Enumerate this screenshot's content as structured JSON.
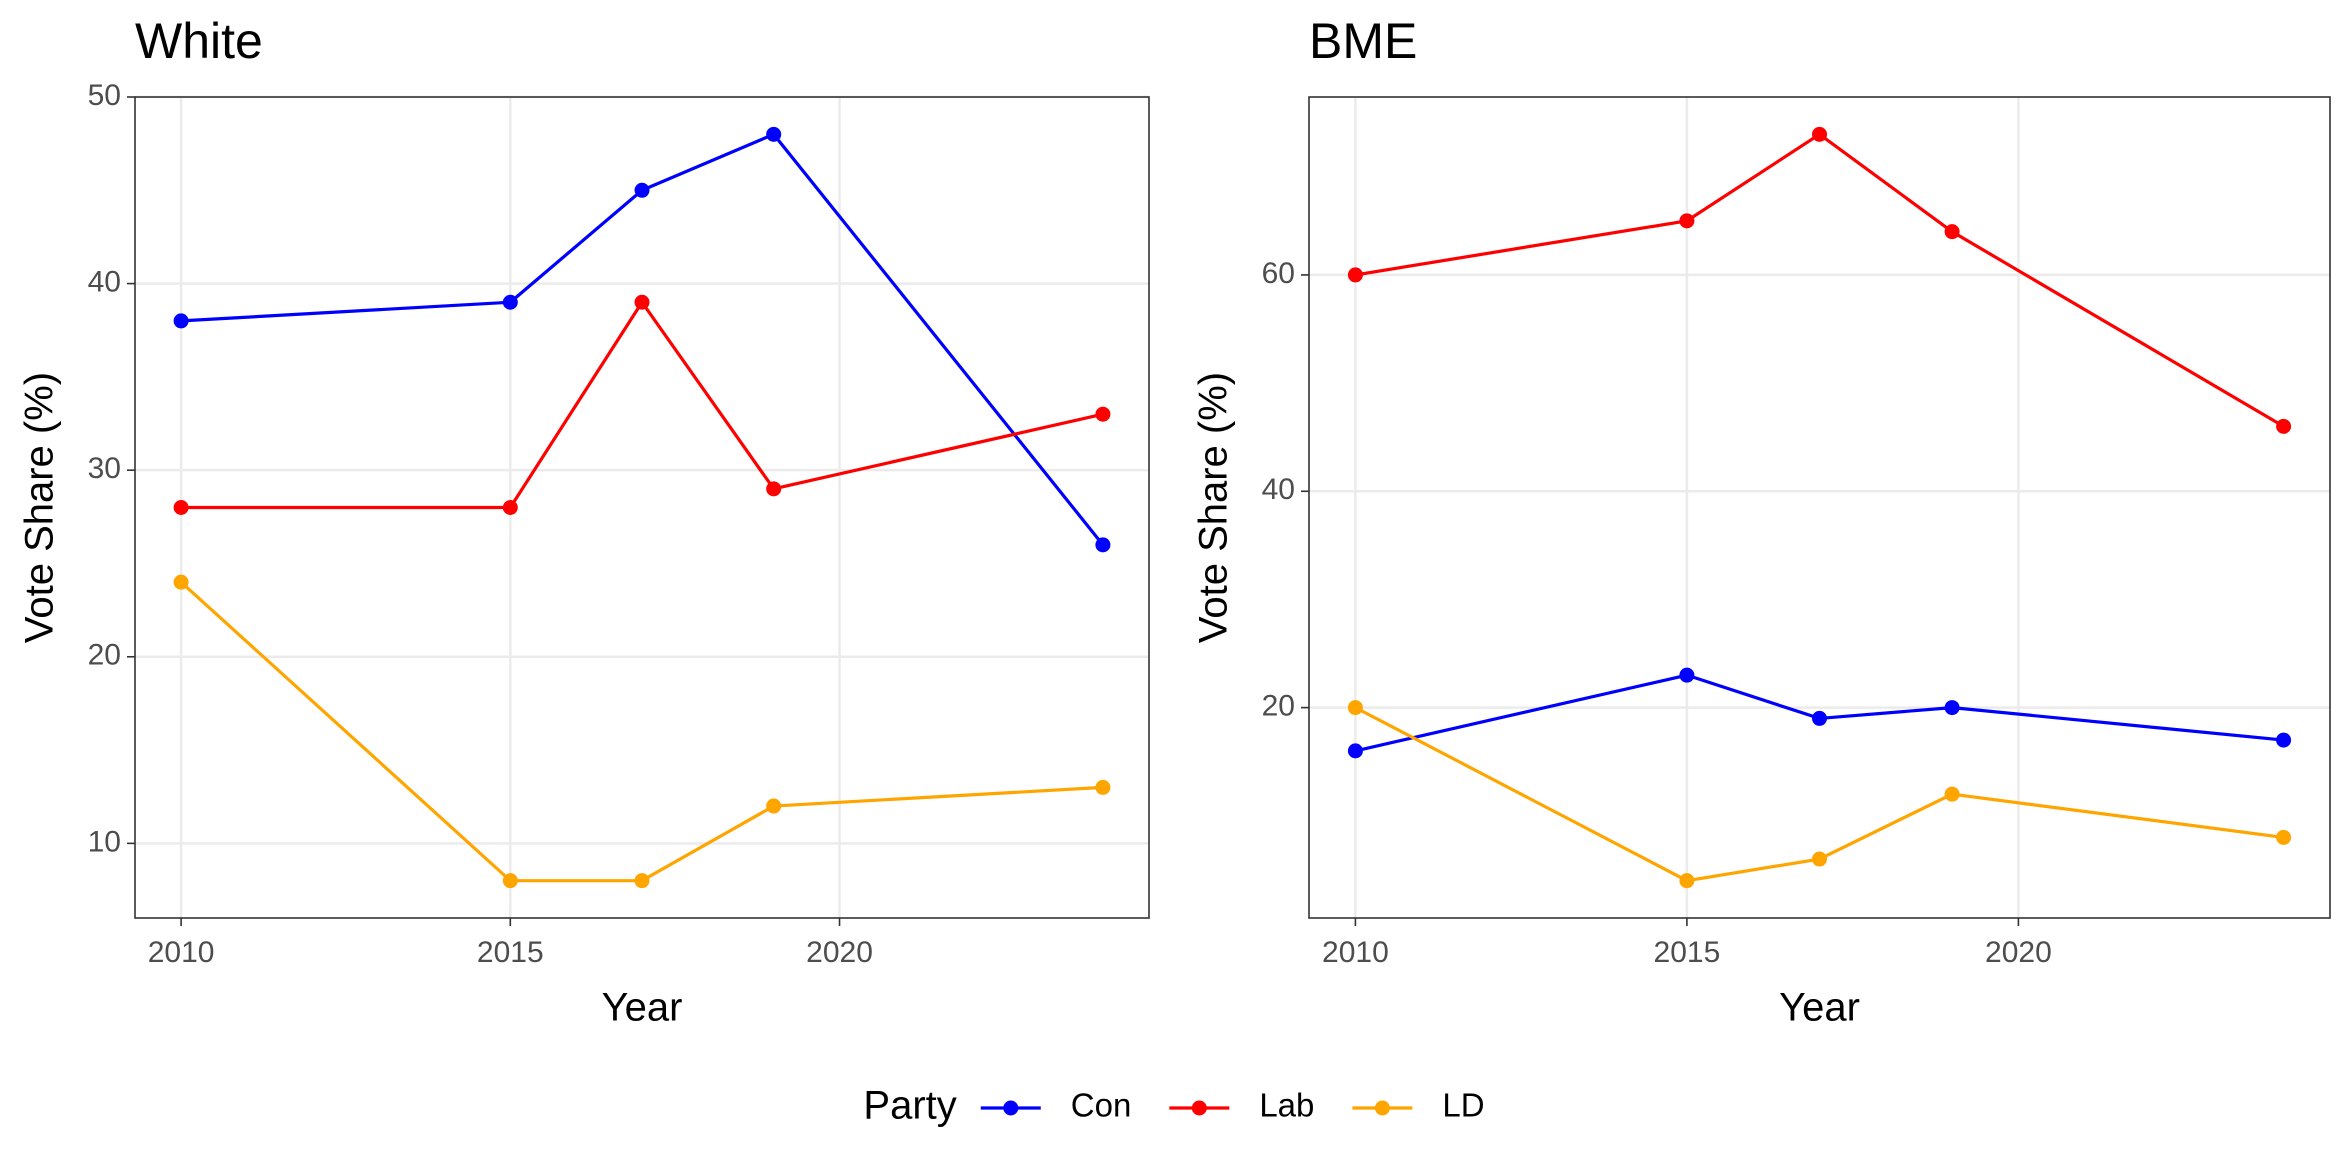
{
  "chart_data": [
    {
      "type": "line",
      "title": "White",
      "x_label": "Year",
      "y_label": "Vote Share (%)",
      "x": [
        2010,
        2015,
        2017,
        2019,
        2024
      ],
      "series": [
        {
          "name": "Con",
          "color": "#0000ff",
          "values": [
            38,
            39,
            45,
            48,
            26
          ]
        },
        {
          "name": "Lab",
          "color": "#ff0000",
          "values": [
            28,
            28,
            39,
            29,
            33
          ]
        },
        {
          "name": "LD",
          "color": "#ffa500",
          "values": [
            24,
            8,
            8,
            12,
            13
          ]
        }
      ],
      "xlim": [
        2009.3,
        2024.7
      ],
      "xticks": [
        2010,
        2015,
        2020
      ],
      "ylim": [
        6,
        50
      ],
      "yticks": [
        10,
        20,
        30,
        40,
        50
      ],
      "grid": true,
      "legend_title": "Party"
    },
    {
      "type": "line",
      "title": "BME",
      "x_label": "Year",
      "y_label": "Vote Share (%)",
      "x": [
        2010,
        2015,
        2017,
        2019,
        2024
      ],
      "series": [
        {
          "name": "Con",
          "color": "#0000ff",
          "values": [
            16,
            23,
            19,
            20,
            17
          ]
        },
        {
          "name": "Lab",
          "color": "#ff0000",
          "values": [
            60,
            65,
            73,
            64,
            46
          ]
        },
        {
          "name": "LD",
          "color": "#ffa500",
          "values": [
            20,
            4,
            6,
            12,
            8
          ]
        }
      ],
      "xlim": [
        2009.3,
        2024.7
      ],
      "xticks": [
        2010,
        2015,
        2020
      ],
      "ylim": [
        0.55,
        76.45
      ],
      "yticks": [
        20,
        40,
        60
      ],
      "grid": true
    }
  ]
}
